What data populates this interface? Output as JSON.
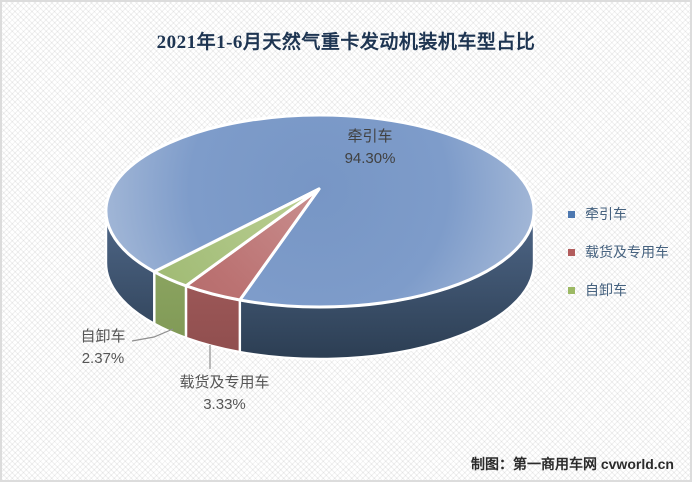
{
  "title": "2021年1-6月天然气重卡发动机装机车型占比",
  "attribution": "制图：第一商用车网 cvworld.cn",
  "chart_data": {
    "type": "pie",
    "style": "3d-pie",
    "title": "2021年1-6月天然气重卡发动机装机车型占比",
    "unit": "%",
    "legend_position": "right",
    "slices": [
      {
        "label": "牵引车",
        "value": 94.3,
        "pct_label": "94.30%",
        "color": "#7e9cca",
        "marker": "#4d78b0",
        "top_stops": [
          "#7796c5",
          "#7e9cca",
          "#a9bcd9"
        ],
        "wall_stops": [
          "#4f6788",
          "#2c3e53"
        ]
      },
      {
        "label": "载货及专用车",
        "value": 3.33,
        "pct_label": "3.33%",
        "color": "#bb7272",
        "marker": "#b25c5c",
        "top_stops": [
          "#c98f8f",
          "#bb7272",
          "#ad6565"
        ],
        "wall_stops": [
          "#a86060",
          "#8f4e4e"
        ]
      },
      {
        "label": "自卸车",
        "value": 2.37,
        "pct_label": "2.37%",
        "color": "#a8c17e",
        "marker": "#9cb964",
        "top_stops": [
          "#bcd094",
          "#a8c17e",
          "#9ab56b"
        ],
        "wall_stops": [
          "#93ac68",
          "#7e9754"
        ]
      }
    ]
  }
}
